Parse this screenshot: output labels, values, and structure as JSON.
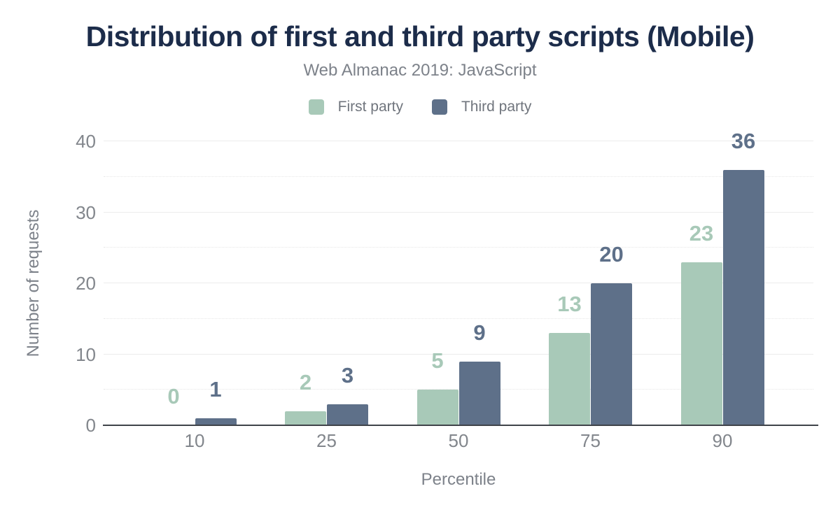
{
  "chart_data": {
    "type": "bar",
    "title": "Distribution of first and third party scripts (Mobile)",
    "subtitle": "Web Almanac 2019: JavaScript",
    "categories": [
      "10",
      "25",
      "50",
      "75",
      "90"
    ],
    "series": [
      {
        "name": "First party",
        "color": "#a8c9b8",
        "values": [
          0,
          2,
          5,
          13,
          23
        ]
      },
      {
        "name": "Third party",
        "color": "#5e7089",
        "values": [
          1,
          3,
          9,
          20,
          36
        ]
      }
    ],
    "xlabel": "Percentile",
    "ylabel": "Number of requests",
    "ylim": [
      0,
      40
    ],
    "yticks": [
      0,
      10,
      20,
      30,
      40
    ],
    "yticks_minor": [
      5,
      15,
      25,
      35
    ],
    "grid": "horizontal",
    "legend_position": "top",
    "value_labels": true
  },
  "colors": {
    "title_text": "#1c2c4a",
    "subtitle_text": "#7d828a",
    "legend_text": "#70757d",
    "tick_text": "#82868c",
    "axis_title_text": "#7d828a",
    "gridline_major": "#ececec",
    "gridline_minor": "#e7e7e7",
    "axis_line": "#3f4349",
    "background": "#ffffff"
  }
}
